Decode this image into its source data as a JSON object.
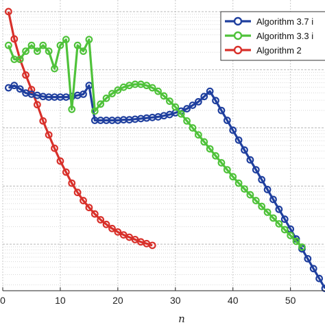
{
  "chart_data": {
    "type": "line",
    "xlabel": "n",
    "ylabel": "",
    "title": "",
    "xlim": [
      0,
      56
    ],
    "ylim_log10": [
      -4.8,
      0.2
    ],
    "yscale": "log",
    "grid": true,
    "legend_position": "top-right",
    "x_tick_labels": [
      "0",
      "10",
      "20",
      "30",
      "40",
      "50"
    ],
    "x_tick_values": [
      0,
      10,
      20,
      30,
      40,
      50
    ],
    "series": [
      {
        "name": "Algorithm 3.7 i",
        "color": "#1f3f9e",
        "x": [
          1,
          2,
          3,
          4,
          5,
          6,
          7,
          8,
          9,
          10,
          11,
          12,
          13,
          14,
          15,
          16,
          17,
          18,
          19,
          20,
          21,
          22,
          23,
          24,
          25,
          26,
          27,
          28,
          29,
          30,
          31,
          32,
          33,
          34,
          35,
          36,
          37,
          38,
          39,
          40,
          41,
          42,
          43,
          44,
          45,
          46,
          47,
          48,
          49,
          50,
          51,
          52,
          53,
          54,
          55,
          56
        ],
        "log10_y": [
          -1.31,
          -1.27,
          -1.33,
          -1.4,
          -1.42,
          -1.44,
          -1.46,
          -1.47,
          -1.47,
          -1.47,
          -1.47,
          -1.46,
          -1.44,
          -1.42,
          -1.27,
          -1.87,
          -1.87,
          -1.87,
          -1.87,
          -1.87,
          -1.86,
          -1.86,
          -1.85,
          -1.84,
          -1.83,
          -1.82,
          -1.81,
          -1.79,
          -1.77,
          -1.74,
          -1.71,
          -1.67,
          -1.61,
          -1.55,
          -1.46,
          -1.37,
          -1.53,
          -1.7,
          -1.87,
          -2.04,
          -2.21,
          -2.38,
          -2.55,
          -2.72,
          -2.89,
          -3.06,
          -3.23,
          -3.4,
          -3.57,
          -3.74,
          -3.91,
          -4.08,
          -4.25,
          -4.42,
          -4.59,
          -4.76
        ]
      },
      {
        "name": "Algorithm 3.3 i",
        "color": "#4fc23a",
        "x": [
          1,
          2,
          3,
          4,
          5,
          6,
          7,
          8,
          9,
          10,
          11,
          12,
          13,
          14,
          15,
          16,
          17,
          18,
          19,
          20,
          21,
          22,
          23,
          24,
          25,
          26,
          27,
          28,
          29,
          30,
          31,
          32,
          33,
          34,
          35,
          36,
          37,
          38,
          39,
          40,
          41,
          42,
          43,
          44,
          45,
          46,
          47,
          48,
          49,
          50,
          51,
          52
        ],
        "log10_y": [
          -0.58,
          -0.82,
          -0.82,
          -0.68,
          -0.58,
          -0.68,
          -0.58,
          -0.68,
          -0.98,
          -0.58,
          -0.48,
          -1.68,
          -0.58,
          -0.68,
          -0.48,
          -1.71,
          -1.59,
          -1.49,
          -1.41,
          -1.35,
          -1.3,
          -1.27,
          -1.25,
          -1.25,
          -1.27,
          -1.31,
          -1.37,
          -1.45,
          -1.54,
          -1.64,
          -1.76,
          -1.88,
          -2.0,
          -2.12,
          -2.24,
          -2.36,
          -2.48,
          -2.6,
          -2.72,
          -2.84,
          -2.95,
          -3.05,
          -3.15,
          -3.25,
          -3.35,
          -3.45,
          -3.55,
          -3.65,
          -3.75,
          -3.85,
          -3.95,
          -4.05
        ]
      },
      {
        "name": "Algorithm 2",
        "color": "#d8302a",
        "x": [
          1,
          2,
          3,
          4,
          5,
          6,
          7,
          8,
          9,
          10,
          11,
          12,
          13,
          14,
          15,
          16,
          17,
          18,
          19,
          20,
          21,
          22,
          23,
          24,
          25,
          26
        ],
        "log10_y": [
          0.0,
          -0.47,
          -0.82,
          -1.09,
          -1.34,
          -1.6,
          -1.88,
          -2.12,
          -2.35,
          -2.57,
          -2.76,
          -2.95,
          -3.11,
          -3.25,
          -3.37,
          -3.48,
          -3.58,
          -3.66,
          -3.73,
          -3.79,
          -3.84,
          -3.88,
          -3.92,
          -3.96,
          -3.99,
          -4.02
        ]
      }
    ]
  }
}
